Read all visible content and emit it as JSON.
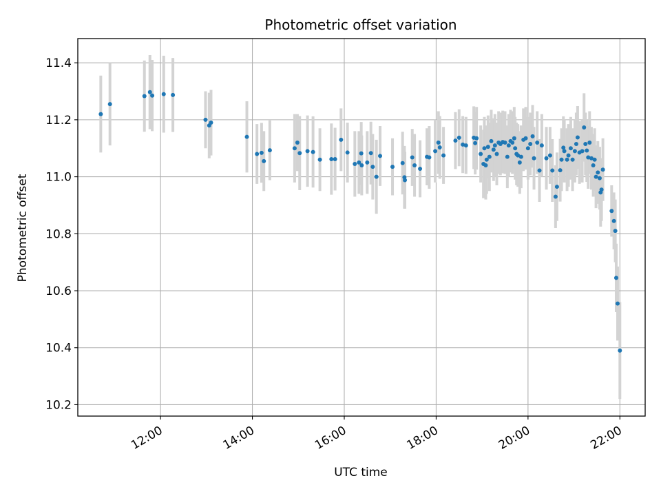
{
  "chart_data": {
    "type": "scatter",
    "title": "Photometric offset variation",
    "xlabel": "UTC time",
    "ylabel": "Photometric offset",
    "x_unit": "hours (UTC)",
    "xlim": [
      10.2,
      22.55
    ],
    "ylim": [
      10.16,
      11.485
    ],
    "x_ticks": [
      12,
      14,
      16,
      18,
      20,
      22
    ],
    "x_tick_labels": [
      "12:00",
      "14:00",
      "16:00",
      "18:00",
      "20:00",
      "22:00"
    ],
    "y_ticks": [
      10.2,
      10.4,
      10.6,
      10.8,
      11.0,
      11.2,
      11.4
    ],
    "y_tick_labels": [
      "10.2",
      "10.4",
      "10.6",
      "10.8",
      "11.0",
      "11.2",
      "11.4"
    ],
    "grid": true,
    "colors": {
      "point": "#1f77b4",
      "errorbar": "#d3d3d3",
      "grid": "#b0b0b0"
    },
    "series": [
      {
        "points": [
          [
            10.7,
            11.22,
            0.135
          ],
          [
            10.9,
            11.255,
            0.145
          ],
          [
            11.65,
            11.283,
            0.125
          ],
          [
            11.77,
            11.297,
            0.13
          ],
          [
            11.82,
            11.285,
            0.125
          ],
          [
            12.07,
            11.29,
            0.135
          ],
          [
            12.27,
            11.287,
            0.13
          ],
          [
            12.98,
            11.2,
            0.1
          ],
          [
            13.06,
            11.18,
            0.115
          ],
          [
            13.1,
            11.19,
            0.115
          ],
          [
            13.88,
            11.14,
            0.125
          ],
          [
            14.1,
            11.08,
            0.105
          ],
          [
            14.2,
            11.084,
            0.105
          ],
          [
            14.25,
            11.055,
            0.105
          ],
          [
            14.38,
            11.093,
            0.105
          ],
          [
            14.92,
            11.1,
            0.12
          ],
          [
            14.98,
            11.12,
            0.1
          ],
          [
            15.03,
            11.083,
            0.13
          ],
          [
            15.2,
            11.09,
            0.125
          ],
          [
            15.32,
            11.087,
            0.125
          ],
          [
            15.47,
            11.06,
            0.11
          ],
          [
            15.72,
            11.062,
            0.125
          ],
          [
            15.8,
            11.062,
            0.11
          ],
          [
            15.93,
            11.13,
            0.11
          ],
          [
            16.07,
            11.085,
            0.105
          ],
          [
            16.23,
            11.045,
            0.115
          ],
          [
            16.32,
            11.05,
            0.11
          ],
          [
            16.37,
            11.082,
            0.11
          ],
          [
            16.38,
            11.04,
            0.105
          ],
          [
            16.5,
            11.05,
            0.11
          ],
          [
            16.58,
            11.083,
            0.11
          ],
          [
            16.62,
            11.035,
            0.115
          ],
          [
            16.7,
            11.0,
            0.13
          ],
          [
            16.78,
            11.073,
            0.105
          ],
          [
            17.05,
            11.035,
            0.1
          ],
          [
            17.27,
            11.048,
            0.11
          ],
          [
            17.31,
            10.998,
            0.11
          ],
          [
            17.32,
            10.988,
            0.1
          ],
          [
            17.48,
            11.068,
            0.1
          ],
          [
            17.53,
            11.04,
            0.11
          ],
          [
            17.65,
            11.028,
            0.1
          ],
          [
            17.8,
            11.07,
            0.1
          ],
          [
            17.85,
            11.068,
            0.11
          ],
          [
            17.98,
            11.09,
            0.11
          ],
          [
            18.05,
            11.12,
            0.11
          ],
          [
            18.08,
            11.103,
            0.11
          ],
          [
            18.16,
            11.075,
            0.1
          ],
          [
            18.42,
            11.127,
            0.1
          ],
          [
            18.5,
            11.137,
            0.1
          ],
          [
            18.58,
            11.113,
            0.1
          ],
          [
            18.65,
            11.11,
            0.1
          ],
          [
            18.82,
            11.137,
            0.11
          ],
          [
            18.85,
            11.118,
            0.11
          ],
          [
            18.88,
            11.135,
            0.11
          ],
          [
            18.97,
            11.08,
            0.1
          ],
          [
            19.03,
            11.045,
            0.12
          ],
          [
            19.05,
            11.1,
            0.11
          ],
          [
            19.08,
            11.04,
            0.12
          ],
          [
            19.1,
            11.06,
            0.12
          ],
          [
            19.13,
            11.105,
            0.11
          ],
          [
            19.16,
            11.07,
            0.12
          ],
          [
            19.2,
            11.125,
            0.11
          ],
          [
            19.25,
            11.095,
            0.11
          ],
          [
            19.28,
            11.11,
            0.11
          ],
          [
            19.32,
            11.08,
            0.11
          ],
          [
            19.36,
            11.12,
            0.11
          ],
          [
            19.4,
            11.115,
            0.11
          ],
          [
            19.45,
            11.122,
            0.11
          ],
          [
            19.5,
            11.12,
            0.11
          ],
          [
            19.55,
            11.07,
            0.11
          ],
          [
            19.58,
            11.11,
            0.11
          ],
          [
            19.62,
            11.125,
            0.11
          ],
          [
            19.66,
            11.12,
            0.11
          ],
          [
            19.7,
            11.135,
            0.11
          ],
          [
            19.72,
            11.1,
            0.11
          ],
          [
            19.75,
            11.08,
            0.11
          ],
          [
            19.78,
            11.075,
            0.11
          ],
          [
            19.82,
            11.05,
            0.11
          ],
          [
            19.85,
            11.07,
            0.11
          ],
          [
            19.9,
            11.13,
            0.11
          ],
          [
            19.95,
            11.135,
            0.11
          ],
          [
            20.0,
            11.1,
            0.11
          ],
          [
            20.05,
            11.115,
            0.11
          ],
          [
            20.1,
            11.142,
            0.11
          ],
          [
            20.13,
            11.065,
            0.11
          ],
          [
            20.2,
            11.12,
            0.11
          ],
          [
            20.25,
            11.022,
            0.11
          ],
          [
            20.3,
            11.11,
            0.11
          ],
          [
            20.4,
            11.065,
            0.11
          ],
          [
            20.48,
            11.075,
            0.1
          ],
          [
            20.53,
            11.022,
            0.11
          ],
          [
            20.6,
            10.93,
            0.11
          ],
          [
            20.63,
            10.965,
            0.12
          ],
          [
            20.7,
            11.023,
            0.11
          ],
          [
            20.73,
            11.06,
            0.11
          ],
          [
            20.77,
            11.102,
            0.11
          ],
          [
            20.79,
            11.09,
            0.11
          ],
          [
            20.85,
            11.06,
            0.11
          ],
          [
            20.88,
            11.075,
            0.11
          ],
          [
            20.93,
            11.1,
            0.11
          ],
          [
            20.97,
            11.06,
            0.11
          ],
          [
            21.02,
            11.09,
            0.11
          ],
          [
            21.05,
            11.115,
            0.11
          ],
          [
            21.08,
            11.138,
            0.11
          ],
          [
            21.12,
            11.085,
            0.11
          ],
          [
            21.18,
            11.09,
            0.11
          ],
          [
            21.22,
            11.173,
            0.12
          ],
          [
            21.25,
            11.115,
            0.11
          ],
          [
            21.28,
            11.092,
            0.11
          ],
          [
            21.31,
            11.068,
            0.11
          ],
          [
            21.34,
            11.12,
            0.11
          ],
          [
            21.38,
            11.065,
            0.11
          ],
          [
            21.42,
            11.04,
            0.11
          ],
          [
            21.45,
            11.06,
            0.11
          ],
          [
            21.48,
            11.0,
            0.11
          ],
          [
            21.52,
            11.015,
            0.11
          ],
          [
            21.56,
            10.995,
            0.11
          ],
          [
            21.58,
            10.945,
            0.12
          ],
          [
            21.6,
            10.955,
            0.11
          ],
          [
            21.63,
            11.025,
            0.11
          ],
          [
            21.82,
            10.88,
            0.09
          ],
          [
            21.87,
            10.845,
            0.1
          ],
          [
            21.9,
            10.81,
            0.11
          ],
          [
            21.92,
            10.645,
            0.12
          ],
          [
            21.95,
            10.555,
            0.13
          ],
          [
            22.0,
            10.39,
            0.17
          ]
        ]
      }
    ]
  }
}
